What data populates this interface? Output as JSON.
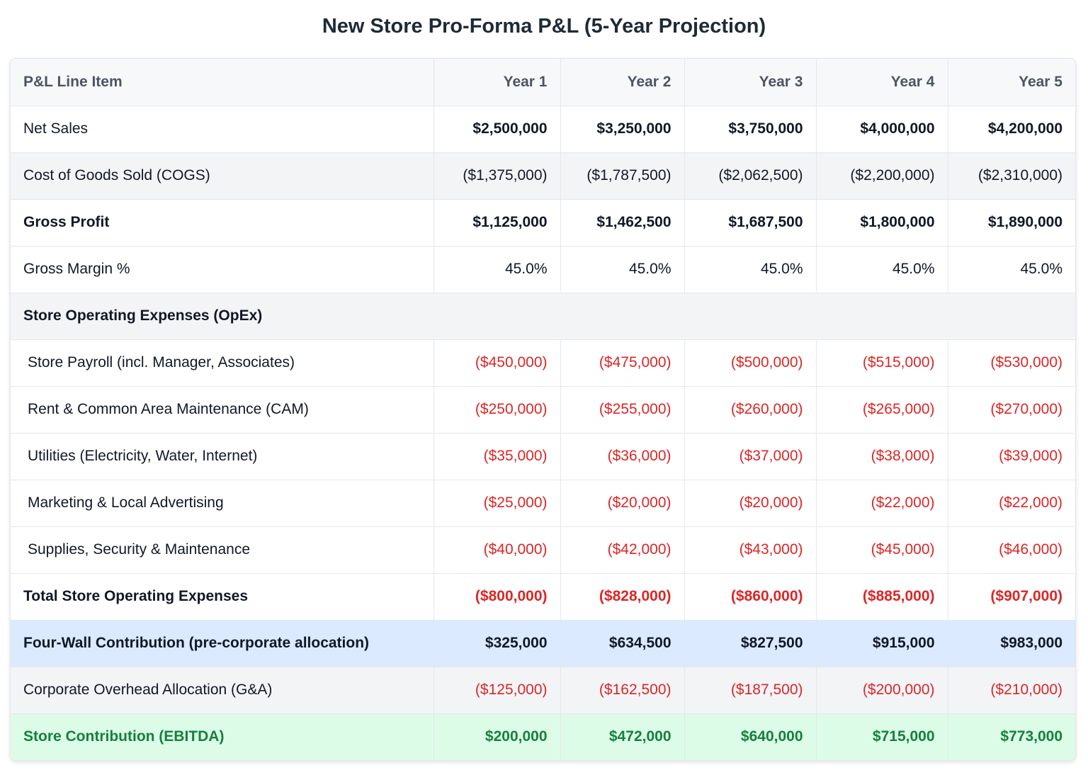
{
  "title": "New Store Pro-Forma P&L (5-Year Projection)",
  "table": {
    "headers": [
      "P&L Line Item",
      "Year 1",
      "Year 2",
      "Year 3",
      "Year 4",
      "Year 5"
    ],
    "rows": {
      "net_sales": {
        "label": "Net Sales",
        "values": [
          "$2,500,000",
          "$3,250,000",
          "$3,750,000",
          "$4,000,000",
          "$4,200,000"
        ]
      },
      "cogs": {
        "label": "Cost of Goods Sold (COGS)",
        "values": [
          "($1,375,000)",
          "($1,787,500)",
          "($2,062,500)",
          "($2,200,000)",
          "($2,310,000)"
        ]
      },
      "gross_profit": {
        "label": "Gross Profit",
        "values": [
          "$1,125,000",
          "$1,462,500",
          "$1,687,500",
          "$1,800,000",
          "$1,890,000"
        ]
      },
      "gross_margin": {
        "label": "Gross Margin %",
        "values": [
          "45.0%",
          "45.0%",
          "45.0%",
          "45.0%",
          "45.0%"
        ]
      },
      "opex_section": {
        "label": "Store Operating Expenses (OpEx)"
      },
      "payroll": {
        "label": "Store Payroll (incl. Manager, Associates)",
        "values": [
          "($450,000)",
          "($475,000)",
          "($500,000)",
          "($515,000)",
          "($530,000)"
        ]
      },
      "rent": {
        "label": "Rent & Common Area Maintenance (CAM)",
        "values": [
          "($250,000)",
          "($255,000)",
          "($260,000)",
          "($265,000)",
          "($270,000)"
        ]
      },
      "utilities": {
        "label": "Utilities (Electricity, Water, Internet)",
        "values": [
          "($35,000)",
          "($36,000)",
          "($37,000)",
          "($38,000)",
          "($39,000)"
        ]
      },
      "marketing": {
        "label": "Marketing & Local Advertising",
        "values": [
          "($25,000)",
          "($20,000)",
          "($20,000)",
          "($22,000)",
          "($22,000)"
        ]
      },
      "supplies": {
        "label": "Supplies, Security & Maintenance",
        "values": [
          "($40,000)",
          "($42,000)",
          "($43,000)",
          "($45,000)",
          "($46,000)"
        ]
      },
      "total_opex": {
        "label": "Total Store Operating Expenses",
        "values": [
          "($800,000)",
          "($828,000)",
          "($860,000)",
          "($885,000)",
          "($907,000)"
        ]
      },
      "four_wall": {
        "label": "Four-Wall Contribution (pre-corporate allocation)",
        "values": [
          "$325,000",
          "$634,500",
          "$827,500",
          "$915,000",
          "$983,000"
        ]
      },
      "corp_overhead": {
        "label": "Corporate Overhead Allocation (G&A)",
        "values": [
          "($125,000)",
          "($162,500)",
          "($187,500)",
          "($200,000)",
          "($210,000)"
        ]
      },
      "ebitda": {
        "label": "Store Contribution (EBITDA)",
        "values": [
          "$200,000",
          "$472,000",
          "$640,000",
          "$715,000",
          "$773,000"
        ]
      }
    }
  },
  "colors": {
    "negative": "#dc2626",
    "four_wall_bg": "#dbeafe",
    "ebitda_bg": "#dcfce7",
    "ebitda_text": "#15803d",
    "shaded_row_bg": "#f3f4f6"
  }
}
